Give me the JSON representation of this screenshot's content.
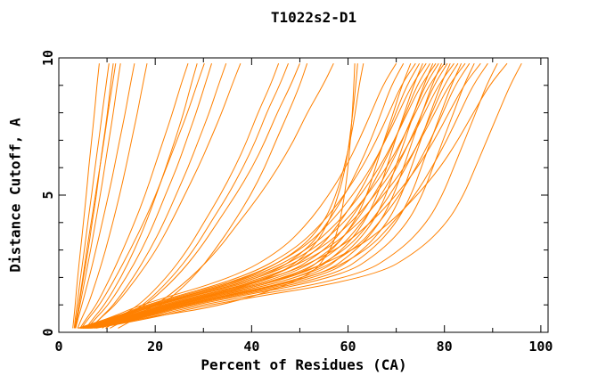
{
  "chart_data": {
    "type": "line",
    "title": "T1022s2-D1",
    "xlabel": "Percent of Residues (CA)",
    "ylabel": "Distance Cutoff, A",
    "xlim": [
      0,
      101.5
    ],
    "ylim": [
      0,
      10
    ],
    "x_major_ticks": [
      0,
      20,
      40,
      60,
      80,
      100
    ],
    "x_minor_ticks": [
      10,
      30,
      50,
      70,
      90
    ],
    "y_major_ticks": [
      0,
      5,
      10
    ],
    "y_minor_ticks": [
      1,
      2,
      3,
      4,
      6,
      7,
      8,
      9
    ],
    "grid": false,
    "legend": "none",
    "frame": "box-with-inward-ticks-all-sides",
    "line_color": "#ff8000",
    "axis_color": "#000000",
    "series_count": 47,
    "y_samples": [
      0.15,
      0.5,
      1,
      2,
      3,
      4,
      5,
      6,
      7,
      8,
      9,
      9.8
    ],
    "series_x": [
      [
        2.9,
        3.1,
        3.4,
        3.9,
        4.5,
        5.1,
        5.7,
        6.2,
        6.8,
        7.4,
        7.9,
        8.4
      ],
      [
        3.2,
        3.4,
        3.8,
        4.5,
        5.3,
        6.0,
        6.8,
        7.5,
        8.3,
        9.0,
        9.8,
        10.4
      ],
      [
        3.3,
        3.6,
        4.2,
        5.1,
        6.1,
        6.9,
        7.8,
        8.5,
        9.3,
        10.1,
        10.7,
        11.3
      ],
      [
        3.4,
        3.7,
        4.1,
        5.0,
        5.8,
        6.7,
        7.6,
        8.5,
        9.4,
        10.2,
        11.1,
        11.8
      ],
      [
        3.4,
        3.8,
        4.4,
        5.5,
        6.6,
        7.6,
        8.6,
        9.5,
        10.4,
        11.3,
        12.1,
        12.8
      ],
      [
        3.5,
        4.0,
        4.8,
        6.3,
        7.7,
        9.0,
        10.3,
        11.5,
        12.6,
        13.8,
        14.8,
        15.7
      ],
      [
        3.9,
        4.7,
        6.1,
        8.0,
        9.7,
        11.2,
        12.6,
        13.9,
        15.1,
        16.3,
        17.4,
        18.3
      ],
      [
        4.4,
        5.7,
        7.8,
        10.7,
        13.3,
        15.7,
        17.9,
        19.8,
        21.7,
        23.6,
        25.3,
        26.8
      ],
      [
        5.6,
        7.1,
        9.5,
        12.9,
        15.7,
        18.1,
        20.2,
        22.2,
        24.1,
        25.9,
        27.4,
        28.7
      ],
      [
        4.7,
        6.1,
        8.5,
        11.8,
        14.8,
        17.6,
        20.1,
        22.3,
        24.5,
        26.7,
        28.6,
        30.2
      ],
      [
        5.9,
        7.6,
        10.3,
        14.0,
        17.2,
        19.8,
        22.1,
        24.5,
        26.5,
        28.5,
        30.3,
        31.7
      ],
      [
        6.7,
        8.5,
        11.4,
        15.5,
        18.9,
        21.8,
        24.3,
        26.8,
        29.0,
        31.2,
        33.1,
        34.7
      ],
      [
        6.5,
        8.5,
        11.8,
        16.3,
        20.2,
        23.3,
        26.1,
        28.9,
        31.4,
        33.8,
        35.9,
        37.7
      ],
      [
        9.0,
        11.9,
        16.8,
        22.4,
        26.7,
        30.1,
        33.5,
        36.5,
        39.1,
        41.3,
        43.9,
        45.6
      ],
      [
        9.7,
        12.7,
        17.7,
        23.5,
        28.0,
        31.5,
        35.1,
        38.2,
        40.9,
        43.1,
        45.8,
        47.6
      ],
      [
        9.7,
        12.9,
        18.2,
        24.4,
        29.1,
        32.9,
        36.7,
        40.1,
        42.9,
        45.3,
        48.1,
        50.0
      ],
      [
        12.3,
        15.8,
        21.6,
        28.0,
        32.4,
        36.3,
        39.8,
        42.7,
        45.1,
        47.6,
        50.0,
        51.5
      ],
      [
        10.6,
        14.3,
        20.4,
        27.5,
        33.0,
        37.3,
        41.7,
        45.5,
        48.8,
        51.5,
        54.8,
        57.0
      ],
      [
        4.5,
        13.0,
        25.0,
        45.0,
        52.5,
        56.0,
        58.0,
        59.5,
        60.3,
        61.0,
        61.6,
        62.0
      ],
      [
        4.0,
        10.0,
        20.0,
        40.0,
        50.0,
        55.0,
        57.5,
        59.2,
        60.5,
        61.5,
        62.3,
        63.2
      ],
      [
        5.0,
        17.0,
        35.0,
        52.0,
        56.5,
        58.3,
        59.3,
        60.0,
        60.5,
        60.9,
        61.2,
        61.4
      ],
      [
        4.2,
        10.4,
        16.8,
        36.4,
        46.2,
        51.8,
        56.0,
        59.5,
        62.3,
        64.8,
        67.2,
        70.0
      ],
      [
        5.0,
        12.4,
        20.0,
        42.9,
        51.5,
        55.8,
        59.3,
        62.2,
        64.7,
        66.9,
        69.0,
        71.5
      ],
      [
        5.8,
        14.5,
        23.4,
        49.6,
        56.9,
        61.3,
        63.9,
        65.7,
        67.5,
        69.4,
        71.2,
        73.0
      ],
      [
        4.4,
        11.0,
        17.8,
        38.5,
        48.8,
        54.8,
        59.2,
        62.9,
        65.9,
        68.5,
        71.0,
        74.0
      ],
      [
        5.2,
        13.0,
        20.9,
        44.9,
        53.9,
        58.3,
        62.1,
        65.1,
        67.7,
        69.9,
        72.2,
        74.8
      ],
      [
        6.0,
        15.0,
        24.2,
        51.3,
        58.9,
        63.4,
        66.1,
        68.0,
        69.8,
        71.7,
        73.6,
        75.5
      ],
      [
        4.6,
        11.3,
        18.3,
        39.6,
        50.3,
        56.4,
        61.0,
        64.8,
        67.8,
        70.5,
        73.2,
        76.2
      ],
      [
        5.4,
        13.4,
        21.6,
        46.2,
        55.4,
        60.1,
        63.9,
        67.0,
        69.7,
        72.0,
        74.3,
        77.0
      ],
      [
        6.2,
        15.4,
        24.8,
        52.8,
        60.5,
        65.2,
        67.9,
        69.8,
        71.8,
        73.7,
        75.7,
        77.6
      ],
      [
        4.7,
        11.7,
        18.8,
        40.7,
        51.6,
        57.9,
        62.6,
        66.5,
        69.6,
        72.3,
        75.1,
        78.2
      ],
      [
        5.5,
        13.7,
        22.1,
        47.3,
        56.7,
        61.5,
        65.4,
        68.6,
        71.3,
        73.7,
        76.0,
        78.8
      ],
      [
        6.4,
        15.7,
        25.4,
        54.0,
        61.9,
        66.7,
        69.5,
        71.5,
        73.4,
        75.4,
        77.4,
        79.4
      ],
      [
        4.8,
        11.9,
        19.2,
        41.6,
        52.8,
        59.2,
        64.0,
        68.0,
        71.2,
        74.0,
        76.8,
        80.0
      ],
      [
        5.6,
        14.0,
        22.6,
        48.4,
        58.0,
        62.9,
        66.9,
        70.1,
        72.9,
        75.4,
        77.8,
        80.6
      ],
      [
        6.5,
        16.1,
        26.0,
        55.2,
        63.3,
        68.2,
        71.1,
        73.1,
        75.1,
        77.1,
        79.2,
        81.2
      ],
      [
        4.9,
        12.2,
        19.7,
        42.6,
        54.1,
        60.7,
        65.6,
        69.7,
        73.0,
        75.9,
        78.7,
        82.0
      ],
      [
        5.8,
        14.4,
        23.2,
        49.7,
        59.6,
        64.6,
        68.7,
        72.0,
        74.9,
        77.4,
        79.9,
        82.8
      ],
      [
        6.7,
        16.6,
        26.7,
        56.8,
        65.1,
        70.1,
        73.1,
        75.2,
        77.2,
        79.3,
        81.4,
        83.5
      ],
      [
        5.1,
        12.5,
        20.2,
        43.8,
        55.6,
        62.4,
        67.4,
        71.7,
        75.0,
        78.0,
        80.9,
        84.3
      ],
      [
        6.0,
        14.8,
        23.9,
        51.1,
        61.3,
        66.5,
        70.7,
        74.1,
        77.1,
        79.7,
        82.2,
        85.2
      ],
      [
        6.9,
        17.1,
        27.6,
        58.6,
        67.2,
        72.4,
        75.4,
        77.6,
        79.7,
        81.9,
        84.0,
        86.2
      ],
      [
        5.3,
        13.0,
        21.0,
        45.5,
        57.8,
        64.8,
        70.0,
        74.4,
        77.9,
        80.9,
        84.0,
        87.5
      ],
      [
        6.2,
        15.4,
        24.9,
        53.4,
        64.1,
        69.4,
        73.9,
        77.4,
        80.5,
        83.2,
        85.9,
        89.0
      ],
      [
        7.3,
        18.0,
        29.1,
        61.9,
        71.0,
        76.4,
        79.6,
        81.9,
        84.2,
        86.5,
        88.7,
        91.0
      ],
      [
        5.6,
        13.8,
        22.3,
        48.4,
        61.4,
        68.8,
        74.4,
        79.1,
        82.8,
        86.0,
        89.3,
        93.0
      ],
      [
        7.7,
        19.0,
        30.7,
        65.3,
        74.9,
        80.6,
        84.0,
        86.4,
        88.8,
        91.2,
        93.6,
        96.0
      ]
    ]
  }
}
